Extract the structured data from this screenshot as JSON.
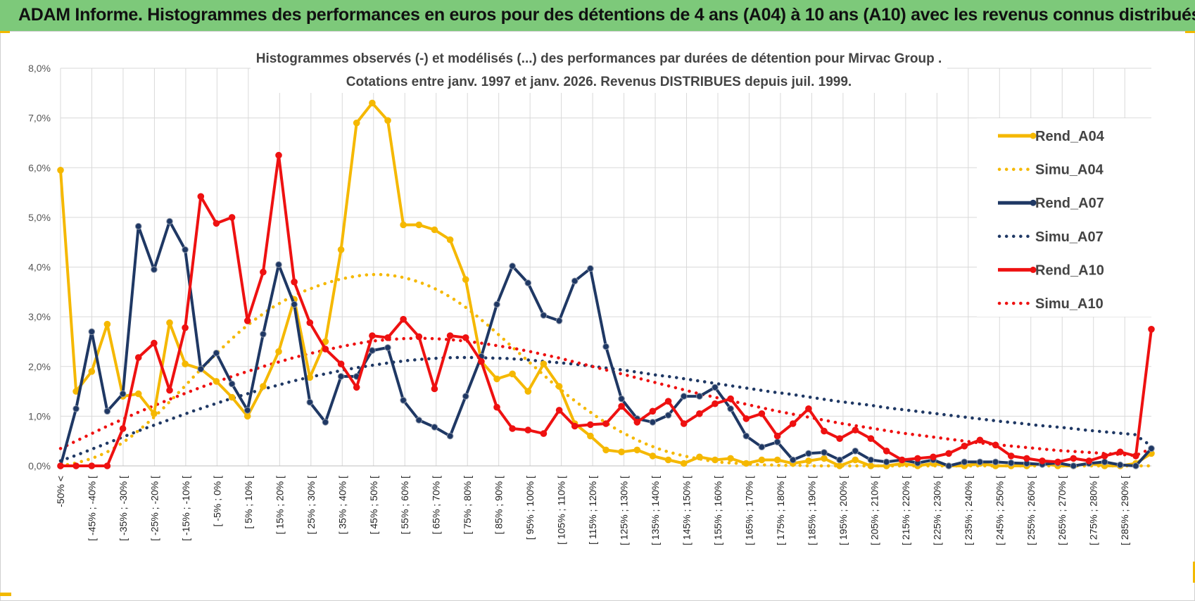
{
  "banner": {
    "title": "ADAM Informe. Histogrammes des performances en euros pour des détentions de 4 ans (A04) à 10 ans (A10) avec les revenus connus distribués"
  },
  "chart_data": {
    "type": "line",
    "title_line1": "Histogrammes observés (-) et modélisés (...) des performances par durées de détention pour Mirvac Group .",
    "title_line2": "Cotations entre janv. 1997 et janv. 2026. Revenus DISTRIBUES depuis juil. 1999.",
    "ylim": [
      0,
      8
    ],
    "yticks": [
      "0,0%",
      "1,0%",
      "2,0%",
      "3,0%",
      "4,0%",
      "5,0%",
      "6,0%",
      "7,0%",
      "8,0%"
    ],
    "xticklabels": [
      "-50% <",
      "[ -45% ; -40% [",
      "[ -35% ; -30% [",
      "[ -25% ; -20% [",
      "[ -15% ; -10% [",
      "[ -5% ; 0% [",
      "[ 5% ; 10% [",
      "[ 15% ; 20% [",
      "[ 25% ; 30% [",
      "[ 35% ; 40% [",
      "[ 45% ; 50% [",
      "[ 55% ; 60% [",
      "[ 65% ; 70% [",
      "[ 75% ; 80% [",
      "[ 85% ; 90% [",
      "[ 95% ; 100% [",
      "[ 105% ; 110% [",
      "[ 115% ; 120% [",
      "[ 125% ; 130% [",
      "[ 135% ; 140% [",
      "[ 145% ; 150% [",
      "[ 155% ; 160% [",
      "[ 165% ; 170% [",
      "[ 175% ; 180% [",
      "[ 185% ; 190% [",
      "[ 195% ; 200% [",
      "[ 205% ; 210% [",
      "[ 215% ; 220% [",
      "[ 225% ; 230% [",
      "[ 235% ; 240% [",
      "[ 245% ; 250% [",
      "[ 255% ; 260% [",
      "[ 265% ; 270% [",
      "[ 275% ; 280% [",
      "[ 285% ; 290% ["
    ],
    "series": [
      {
        "name": "Rend_A04",
        "color": "#f5b800",
        "style": "solid",
        "values": [
          5.95,
          1.5,
          1.9,
          2.85,
          1.4,
          1.45,
          1.05,
          2.88,
          2.05,
          1.95,
          1.7,
          1.38,
          1.0,
          1.6,
          2.3,
          3.35,
          1.78,
          2.5,
          4.35,
          6.9,
          7.3,
          6.95,
          4.85,
          4.85,
          4.75,
          4.55,
          3.75,
          2.1,
          1.75,
          1.85,
          1.5,
          2.05,
          1.6,
          0.85,
          0.6,
          0.32,
          0.28,
          0.32,
          0.2,
          0.12,
          0.05,
          0.18,
          0.12,
          0.15,
          0.05,
          0.12,
          0.12,
          0.05,
          0.1,
          0.15,
          0.0,
          0.12,
          0.0,
          0.0,
          0.05,
          0.0,
          0.05,
          0.0,
          0.0,
          0.05,
          0.0,
          0.0,
          0.0,
          0.05,
          0.0,
          0.0,
          0.05,
          0.0,
          0.0,
          0.05,
          0.25
        ]
      },
      {
        "name": "Simu_A04",
        "color": "#f5b800",
        "style": "dotted",
        "values": [
          0.0,
          0.03,
          0.06,
          0.1,
          0.15,
          0.21,
          0.28,
          0.37,
          0.47,
          0.58,
          0.71,
          0.84,
          0.98,
          1.13,
          1.29,
          1.45,
          1.61,
          1.78,
          1.94,
          2.1,
          2.26,
          2.41,
          2.56,
          2.7,
          2.83,
          2.95,
          3.06,
          3.17,
          3.26,
          3.35,
          3.43,
          3.5,
          3.56,
          3.62,
          3.67,
          3.72,
          3.76,
          3.79,
          3.82,
          3.84,
          3.85,
          3.85,
          3.84,
          3.82,
          3.79,
          3.75,
          3.7,
          3.64,
          3.57,
          3.49,
          3.4,
          3.3,
          3.19,
          3.07,
          2.94,
          2.81,
          2.67,
          2.53,
          2.39,
          2.25,
          2.11,
          1.97,
          1.83,
          1.69,
          1.56,
          1.43,
          1.31,
          1.19,
          1.08,
          0.97,
          0.87,
          0.77,
          0.68,
          0.6,
          0.52,
          0.45,
          0.39,
          0.33,
          0.28,
          0.24,
          0.2,
          0.17,
          0.14,
          0.11,
          0.09,
          0.07,
          0.06,
          0.05,
          0.04,
          0.03,
          0.02,
          0.02,
          0.01,
          0.01,
          0.01,
          0.01,
          0.0,
          0.0,
          0.0,
          0.0,
          0.0,
          0.0,
          0.0,
          0.0,
          0.0,
          0.0,
          0.0,
          0.0,
          0.0,
          0.0,
          0.0,
          0.0,
          0.0,
          0.0,
          0.0,
          0.0,
          0.0,
          0.0,
          0.0,
          0.0,
          0.0,
          0.0,
          0.0,
          0.0,
          0.0,
          0.0,
          0.0,
          0.0,
          0.0,
          0.0,
          0.0,
          0.0,
          0.0,
          0.0,
          0.0,
          0.0,
          0.0,
          0.0,
          0.0,
          0.0,
          0.0
        ]
      },
      {
        "name": "Rend_A07",
        "color": "#1f3864",
        "style": "solid",
        "values": [
          0.0,
          1.15,
          2.7,
          1.1,
          1.45,
          4.82,
          3.95,
          4.92,
          4.35,
          1.95,
          2.27,
          1.65,
          1.12,
          2.65,
          4.05,
          3.25,
          1.28,
          0.88,
          1.8,
          1.8,
          2.32,
          2.38,
          1.32,
          0.92,
          0.78,
          0.6,
          1.4,
          2.2,
          3.25,
          4.02,
          3.68,
          3.03,
          2.92,
          3.72,
          3.97,
          2.4,
          1.35,
          0.95,
          0.88,
          1.02,
          1.4,
          1.4,
          1.58,
          1.15,
          0.6,
          0.38,
          0.48,
          0.12,
          0.25,
          0.27,
          0.12,
          0.3,
          0.12,
          0.08,
          0.12,
          0.06,
          0.12,
          0.0,
          0.08,
          0.08,
          0.08,
          0.06,
          0.05,
          0.03,
          0.06,
          0.0,
          0.05,
          0.08,
          0.02,
          0.0,
          0.35
        ]
      },
      {
        "name": "Simu_A07",
        "color": "#1f3864",
        "style": "dotted",
        "values": [
          0.1,
          0.22,
          0.35,
          0.48,
          0.61,
          0.74,
          0.86,
          0.98,
          1.1,
          1.21,
          1.32,
          1.42,
          1.52,
          1.61,
          1.7,
          1.78,
          1.85,
          1.92,
          1.98,
          2.03,
          2.08,
          2.12,
          2.15,
          2.17,
          2.18,
          2.18,
          2.17,
          2.16,
          2.14,
          2.11,
          2.08,
          2.05,
          2.01,
          1.97,
          1.93,
          1.88,
          1.83,
          1.79,
          1.74,
          1.69,
          1.64,
          1.59,
          1.54,
          1.49,
          1.45,
          1.4,
          1.35,
          1.3,
          1.26,
          1.22,
          1.17,
          1.13,
          1.09,
          1.05,
          1.01,
          0.97,
          0.93,
          0.89,
          0.86,
          0.82,
          0.79,
          0.76,
          0.72,
          0.69,
          0.66,
          0.63,
          0.4
        ]
      },
      {
        "name": "Rend_A10",
        "color": "#ee1111",
        "style": "solid",
        "values": [
          0.0,
          0.0,
          0.0,
          0.0,
          0.75,
          2.18,
          2.47,
          1.52,
          2.78,
          5.42,
          4.88,
          5.0,
          2.92,
          3.9,
          6.25,
          3.7,
          2.88,
          2.35,
          2.05,
          1.58,
          2.62,
          2.58,
          2.95,
          2.6,
          1.55,
          2.62,
          2.58,
          2.1,
          1.18,
          0.75,
          0.72,
          0.65,
          1.12,
          0.8,
          0.83,
          0.85,
          1.2,
          0.88,
          1.1,
          1.3,
          0.85,
          1.05,
          1.25,
          1.35,
          0.95,
          1.05,
          0.6,
          0.85,
          1.15,
          0.7,
          0.55,
          0.72,
          0.55,
          0.3,
          0.12,
          0.15,
          0.18,
          0.25,
          0.4,
          0.52,
          0.42,
          0.2,
          0.15,
          0.1,
          0.08,
          0.15,
          0.1,
          0.2,
          0.28,
          0.2,
          2.75
        ]
      },
      {
        "name": "Simu_A10",
        "color": "#ee1111",
        "style": "dotted",
        "values": [
          0.35,
          0.5,
          0.65,
          0.8,
          0.94,
          1.08,
          1.21,
          1.34,
          1.46,
          1.58,
          1.69,
          1.8,
          1.9,
          2.0,
          2.09,
          2.18,
          2.26,
          2.33,
          2.4,
          2.46,
          2.51,
          2.54,
          2.56,
          2.57,
          2.56,
          2.54,
          2.51,
          2.47,
          2.42,
          2.37,
          2.31,
          2.24,
          2.17,
          2.09,
          2.01,
          1.93,
          1.85,
          1.77,
          1.69,
          1.61,
          1.53,
          1.45,
          1.38,
          1.31,
          1.24,
          1.17,
          1.1,
          1.04,
          0.98,
          0.92,
          0.86,
          0.81,
          0.76,
          0.71,
          0.66,
          0.62,
          0.58,
          0.54,
          0.5,
          0.46,
          0.43,
          0.4,
          0.37,
          0.34,
          0.31,
          0.29,
          0.27,
          0.25,
          0.23,
          0.21,
          0.35
        ]
      }
    ],
    "legend": [
      "Rend_A04",
      "Simu_A04",
      "Rend_A07",
      "Simu_A07",
      "Rend_A10",
      "Simu_A10"
    ],
    "legend_position": "top-right",
    "grid": true
  }
}
